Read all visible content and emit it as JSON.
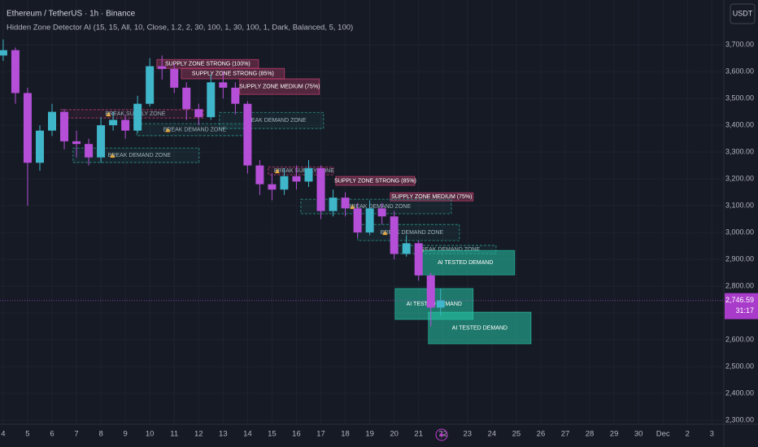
{
  "chart_data": {
    "type": "candlestick",
    "title": "Ethereum / TetherUS · 1h · Binance",
    "subtitle": "Hidden Zone Detector AI (15, 15, All, 10, Close, 1.2, 2, 30, 100, 1, 30, 100, 1, Dark, Balanced, 5, 100)",
    "currency_button": "USDT",
    "x": [
      0,
      0.5,
      1,
      1.5,
      2,
      2.5,
      3,
      3.5,
      4,
      4.5,
      5,
      5.5,
      6,
      6.5,
      7,
      7.5,
      8,
      8.5,
      9,
      9.5,
      10,
      10.5,
      11,
      11.5,
      12,
      12.5,
      13,
      13.5,
      14,
      14.5,
      15,
      15.5,
      16,
      16.5,
      17,
      17.5,
      17.9
    ],
    "open": [
      3660,
      3680,
      3520,
      3260,
      3380,
      3450,
      3340,
      3330,
      3280,
      3400,
      3420,
      3380,
      3480,
      3620,
      3610,
      3540,
      3460,
      3430,
      3560,
      3540,
      3480,
      3250,
      3180,
      3160,
      3210,
      3190,
      3240,
      3080,
      3130,
      3090,
      3000,
      3090,
      3060,
      2920,
      2960,
      2840,
      2720
    ],
    "high": [
      3720,
      3690,
      3540,
      3400,
      3480,
      3460,
      3380,
      3350,
      3430,
      3450,
      3440,
      3510,
      3650,
      3660,
      3630,
      3560,
      3480,
      3590,
      3600,
      3560,
      3490,
      3270,
      3220,
      3240,
      3250,
      3270,
      3250,
      3160,
      3150,
      3110,
      3120,
      3110,
      3080,
      2990,
      2970,
      2850,
      2790
    ],
    "low": [
      3640,
      3480,
      3100,
      3230,
      3360,
      3310,
      3280,
      3250,
      3260,
      3380,
      3350,
      3370,
      3470,
      3570,
      3520,
      3420,
      3400,
      3420,
      3500,
      3440,
      3220,
      3140,
      3120,
      3140,
      3160,
      3170,
      3050,
      3060,
      3060,
      2980,
      2990,
      3030,
      2900,
      2910,
      2820,
      2650,
      2690
    ],
    "close": [
      3680,
      3520,
      3260,
      3380,
      3450,
      3340,
      3330,
      3280,
      3400,
      3420,
      3380,
      3480,
      3620,
      3610,
      3540,
      3460,
      3430,
      3560,
      3540,
      3480,
      3250,
      3180,
      3160,
      3210,
      3190,
      3240,
      3080,
      3130,
      3090,
      3000,
      3090,
      3060,
      2920,
      2960,
      2840,
      2720,
      2746.59
    ],
    "colors": {
      "up": "#3fb6c9",
      "down": "#b54fd8",
      "supply": "#e0457b",
      "break-supply": "#e0457b",
      "break-demand": "#2fb6a4",
      "tested-demand": "#26c6a6"
    },
    "zones": [
      {
        "label": "SUPPLY ZONE STRONG (100%)",
        "kind": "supply",
        "x": [
          6.29,
          10.45
        ],
        "range": [
          3612,
          3645
        ]
      },
      {
        "label": "SUPPLY ZONE STRONG (85%)",
        "kind": "supply",
        "x": [
          7.29,
          11.51
        ],
        "range": [
          3573,
          3612
        ]
      },
      {
        "label": "SUPPLY ZONE MEDIUM (75%)",
        "kind": "supply",
        "x": [
          9.68,
          12.94
        ],
        "range": [
          3515,
          3573
        ]
      },
      {
        "label": "BREAK SUPPLY ZONE",
        "kind": "break-supply",
        "x": [
          2.36,
          8.19
        ],
        "range": [
          3427,
          3458
        ]
      },
      {
        "label": "BREAK DEMAND ZONE",
        "kind": "break-demand",
        "x": [
          8.85,
          13.11
        ],
        "range": [
          3388,
          3448
        ]
      },
      {
        "label": "BREAK DEMAND ZONE",
        "kind": "break-demand",
        "x": [
          5.46,
          9.95
        ],
        "range": [
          3361,
          3406
        ]
      },
      {
        "label": "BREAK DEMAND ZONE",
        "kind": "break-demand",
        "x": [
          2.86,
          8.02
        ],
        "range": [
          3261,
          3315
        ]
      },
      {
        "label": "BREAK SUPPLY ZONE",
        "kind": "break-supply",
        "x": [
          10.85,
          13.51
        ],
        "range": [
          3215,
          3245
        ]
      },
      {
        "label": "SUPPLY ZONE STRONG (85%)",
        "kind": "supply",
        "x": [
          13.61,
          16.84
        ],
        "range": [
          3176,
          3209
        ]
      },
      {
        "label": "SUPPLY ZONE MEDIUM (75%)",
        "kind": "supply",
        "x": [
          15.84,
          19.23
        ],
        "range": [
          3118,
          3148
        ]
      },
      {
        "label": "BREAK DEMAND ZONE",
        "kind": "break-demand",
        "x": [
          12.18,
          18.34
        ],
        "range": [
          3070,
          3124
        ]
      },
      {
        "label": "BREAK DEMAND ZONE",
        "kind": "break-demand",
        "x": [
          14.51,
          18.67
        ],
        "range": [
          2970,
          3030
        ]
      },
      {
        "label": "BREAK DEMAND ZONE",
        "kind": "break-demand",
        "x": [
          16.01,
          20.17
        ],
        "range": [
          2921,
          2952
        ]
      },
      {
        "label": "AI TESTED DEMAND",
        "kind": "tested-demand",
        "x": [
          16.9,
          20.93
        ],
        "range": [
          2842,
          2933
        ]
      },
      {
        "label": "AI TESTED DEMAND",
        "kind": "tested-demand",
        "x": [
          16.04,
          19.23
        ],
        "range": [
          2676,
          2791
        ]
      },
      {
        "label": "AI TESTED DEMAND",
        "kind": "tested-demand",
        "x": [
          17.4,
          21.6
        ],
        "range": [
          2585,
          2703
        ]
      }
    ],
    "last_price": {
      "value": 2746.59,
      "label": "2,746.59"
    },
    "countdown": "31:17",
    "xlim": [
      -0.13,
      29.49
    ],
    "ylim": [
      2285,
      3867
    ],
    "xticks": [
      {
        "value": 0,
        "label": "4"
      },
      {
        "value": 1,
        "label": "5"
      },
      {
        "value": 2,
        "label": "6"
      },
      {
        "value": 3,
        "label": "7"
      },
      {
        "value": 4,
        "label": "8"
      },
      {
        "value": 5,
        "label": "9"
      },
      {
        "value": 6,
        "label": "10"
      },
      {
        "value": 7,
        "label": "11"
      },
      {
        "value": 8,
        "label": "12"
      },
      {
        "value": 9,
        "label": "13"
      },
      {
        "value": 10,
        "label": "14"
      },
      {
        "value": 11,
        "label": "15"
      },
      {
        "value": 12,
        "label": "16"
      },
      {
        "value": 13,
        "label": "17"
      },
      {
        "value": 14,
        "label": "18"
      },
      {
        "value": 15,
        "label": "19"
      },
      {
        "value": 16,
        "label": "20"
      },
      {
        "value": 17,
        "label": "21"
      },
      {
        "value": 18,
        "label": "22"
      },
      {
        "value": 19,
        "label": "23"
      },
      {
        "value": 20,
        "label": "24"
      },
      {
        "value": 21,
        "label": "25"
      },
      {
        "value": 22,
        "label": "26"
      },
      {
        "value": 23,
        "label": "27"
      },
      {
        "value": 24,
        "label": "28"
      },
      {
        "value": 25,
        "label": "29"
      },
      {
        "value": 26,
        "label": "30"
      },
      {
        "value": 27,
        "label": "Dec"
      },
      {
        "value": 28,
        "label": "2"
      },
      {
        "value": 29,
        "label": "3"
      }
    ],
    "yticks": [
      {
        "value": 2300,
        "label": "2,300.00"
      },
      {
        "value": 2400,
        "label": "2,400.00"
      },
      {
        "value": 2500,
        "label": "2,500.00"
      },
      {
        "value": 2600,
        "label": "2,600.00"
      },
      {
        "value": 2700,
        "label": "2,700.00"
      },
      {
        "value": 2800,
        "label": "2,800.00"
      },
      {
        "value": 2900,
        "label": "2,900.00"
      },
      {
        "value": 3000,
        "label": "3,000.00"
      },
      {
        "value": 3100,
        "label": "3,100.00"
      },
      {
        "value": 3200,
        "label": "3,200.00"
      },
      {
        "value": 3300,
        "label": "3,300.00"
      },
      {
        "value": 3400,
        "label": "3,400.00"
      },
      {
        "value": 3500,
        "label": "3,500.00"
      },
      {
        "value": 3600,
        "label": "3,600.00"
      },
      {
        "value": 3700,
        "label": "3,700.00"
      }
    ],
    "grid": true
  }
}
